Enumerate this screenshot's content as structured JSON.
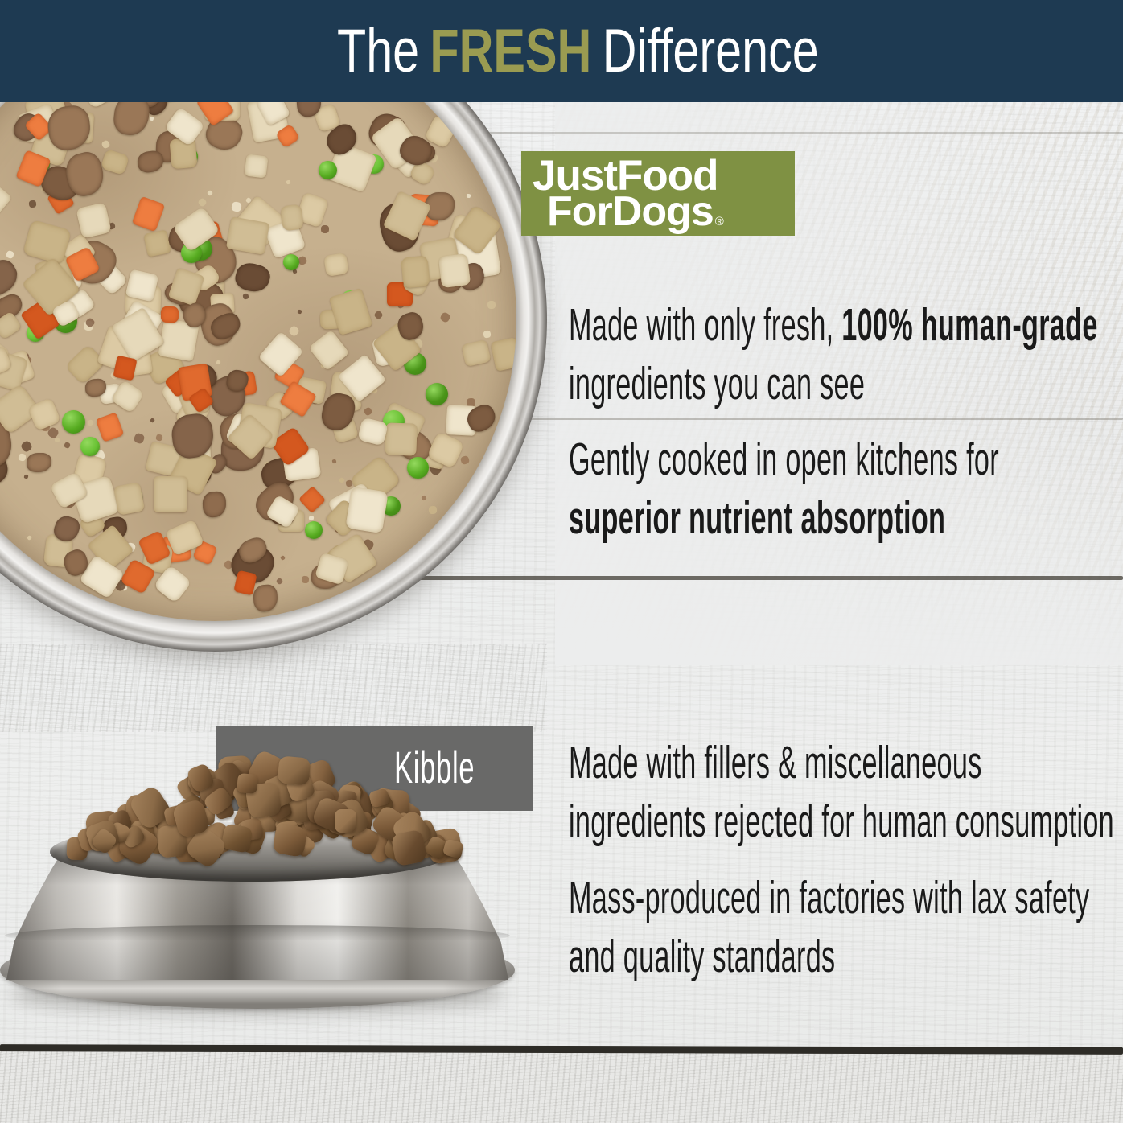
{
  "banner": {
    "text_prefix": "The",
    "text_highlight": "FRESH",
    "text_suffix": "Difference"
  },
  "brand": {
    "logo_line1": "JustFood",
    "logo_line2": "ForDogs",
    "trademark": "®"
  },
  "fresh_section": {
    "points": [
      {
        "lines": [
          [
            {
              "t": "Made with only fresh, ",
              "b": false
            },
            {
              "t": "100% human-grade",
              "b": true
            }
          ],
          [
            {
              "t": "ingredients you can see",
              "b": false
            }
          ]
        ]
      },
      {
        "lines": [
          [
            {
              "t": "Gently cooked in open kitchens for",
              "b": false
            }
          ],
          [
            {
              "t": "superior nutrient absorption",
              "b": true
            }
          ]
        ]
      }
    ]
  },
  "kibble_section": {
    "label": "Kibble",
    "points": [
      {
        "lines": [
          [
            {
              "t": "Made with fillers & miscellaneous",
              "b": false
            }
          ],
          [
            {
              "t": "ingredients rejected for human consumption",
              "b": false
            }
          ]
        ]
      },
      {
        "lines": [
          [
            {
              "t": "Mass-produced in factories with lax safety",
              "b": false
            }
          ],
          [
            {
              "t": "and quality standards",
              "b": false
            }
          ]
        ]
      }
    ]
  },
  "colors": {
    "banner_navy": "#1e3a52",
    "accent_olive": "#9a9b51",
    "logo_green": "#7f9143",
    "kibble_gray": "#696968",
    "body_text": "#1a1a1a"
  }
}
